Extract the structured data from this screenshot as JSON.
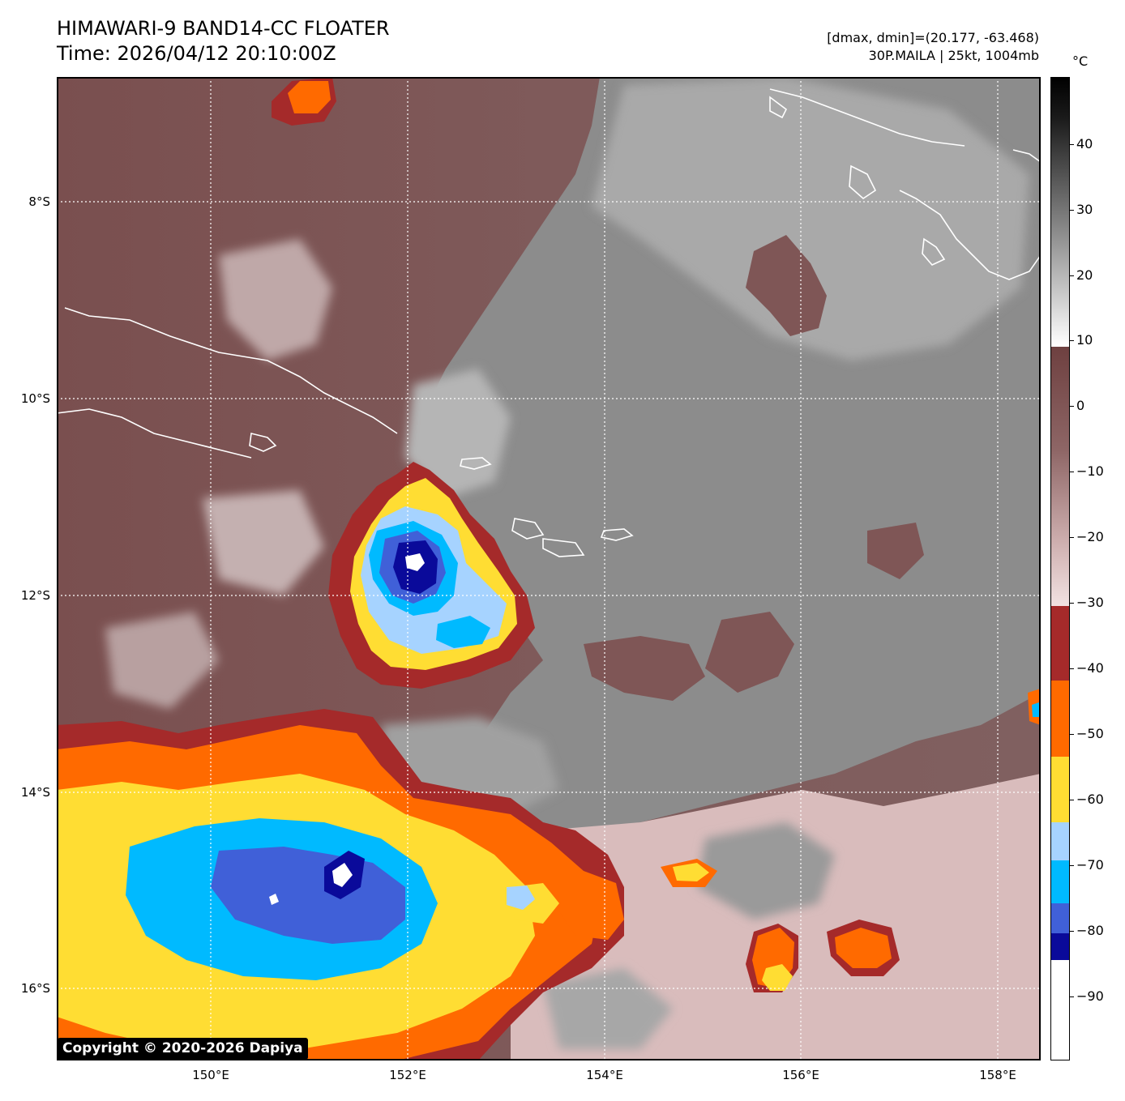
{
  "header": {
    "title_line1": "HIMAWARI-9 BAND14-CC FLOATER",
    "title_line2": "Time: 2026/04/12 20:10:00Z",
    "range_text": "[dmax, dmin]=(20.177, -63.468)",
    "storm_text": "30P.MAILA | 25kt, 1004mb"
  },
  "map": {
    "lat_labels": [
      "8°S",
      "10°S",
      "12°S",
      "14°S",
      "16°S"
    ],
    "lon_labels": [
      "150°E",
      "152°E",
      "154°E",
      "156°E",
      "158°E"
    ],
    "colors": {
      "warm_brown": "#7a4c4c",
      "light_pink": "#e8d0d0",
      "gray_cloud": "#8f8f8f",
      "dark_red": "#a52a2a",
      "orange": "#ff6a00",
      "yellow": "#ffdd33",
      "light_blue": "#a6d3ff",
      "cyan": "#00baff",
      "royal_blue": "#4060d8",
      "navy": "#0a0a9a",
      "coast": "#ffffff"
    }
  },
  "colorbar": {
    "unit": "°C",
    "tick_labels": [
      "40",
      "30",
      "20",
      "10",
      "0",
      "−10",
      "−20",
      "−30",
      "−40",
      "−50",
      "−60",
      "−70",
      "−80",
      "−90"
    ]
  },
  "footer": {
    "copyright": "Copyright © 2020-2026 Dapiya"
  }
}
